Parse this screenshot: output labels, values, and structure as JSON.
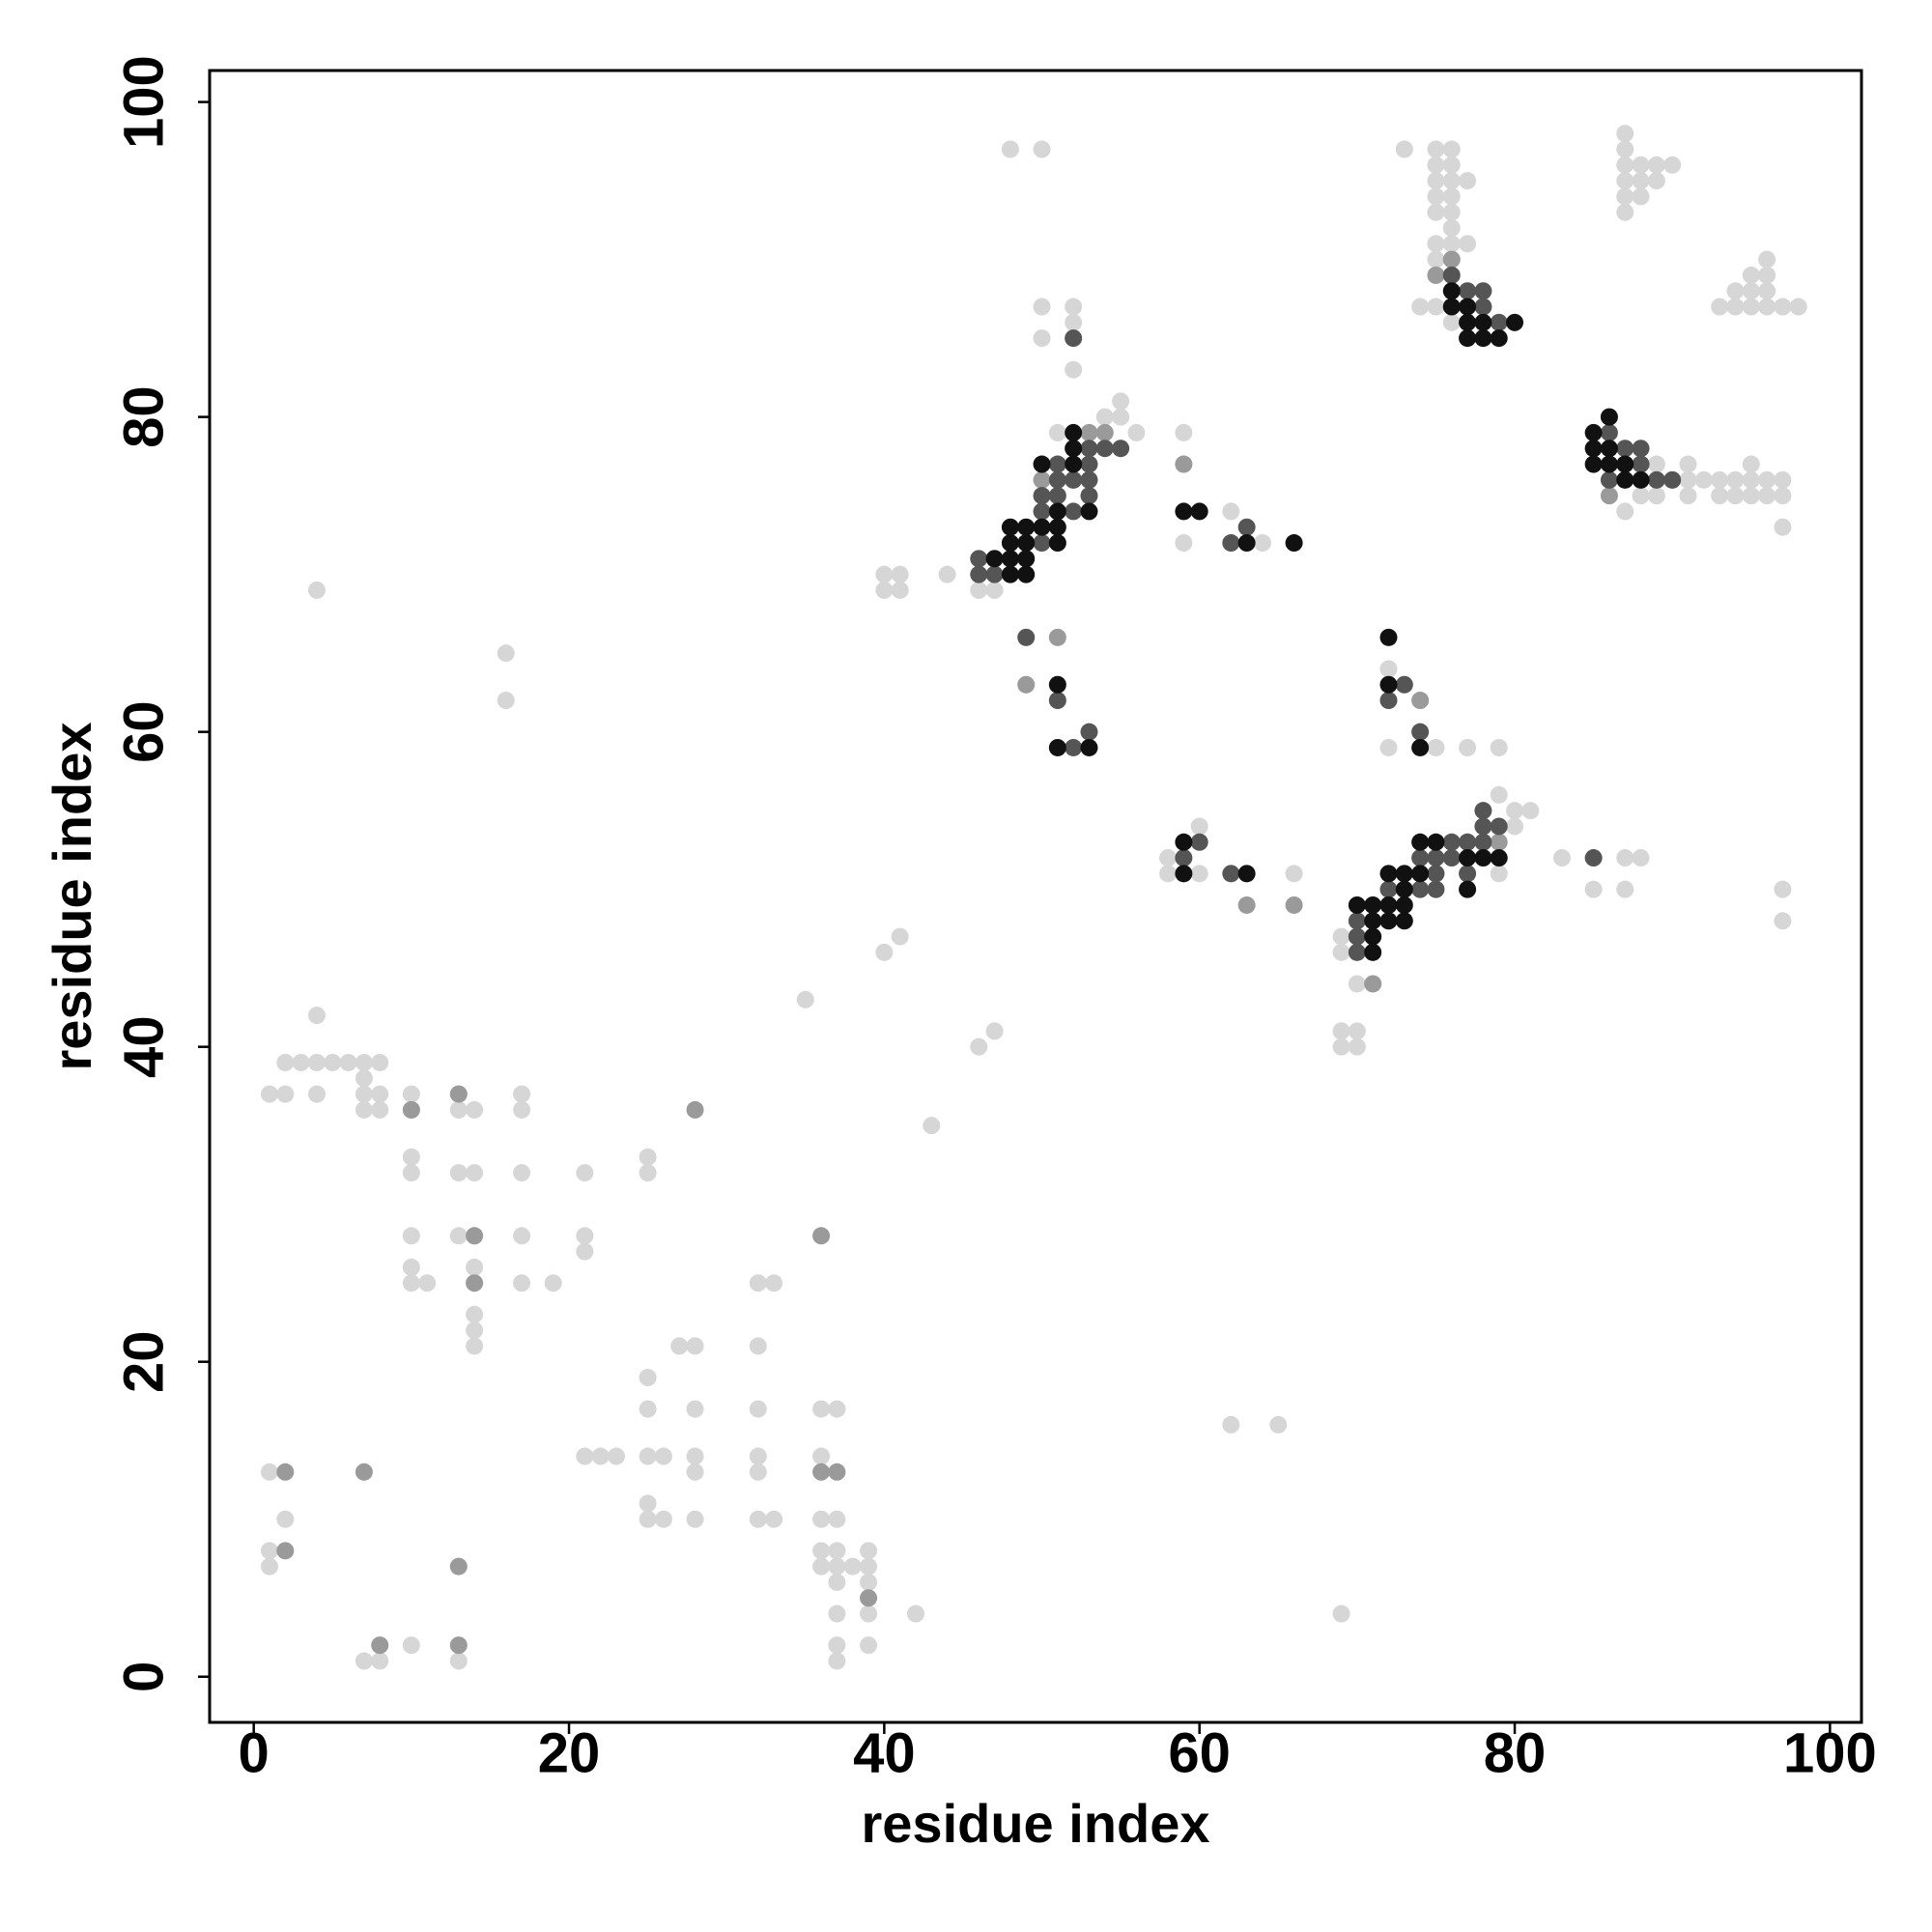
{
  "chart_data": {
    "type": "scatter",
    "x_label": "residue index",
    "y_label": "residue index",
    "xlim": [
      -2.8,
      102
    ],
    "ylim": [
      -2.9,
      102
    ],
    "xticks": [
      0,
      20,
      40,
      60,
      80,
      100
    ],
    "yticks": [
      0,
      20,
      40,
      60,
      80,
      100
    ],
    "series": [
      {
        "color": "#d6d6d6",
        "x": [
          1,
          2,
          4,
          7,
          8,
          4,
          5,
          6,
          7,
          3,
          2,
          8,
          7,
          7,
          8,
          4,
          4,
          10,
          10,
          13,
          13,
          14,
          10,
          10,
          13,
          14,
          17,
          17,
          17,
          21,
          10,
          13,
          14,
          17,
          21,
          21,
          10,
          10,
          11,
          14,
          14,
          17,
          19,
          14,
          14,
          14,
          16,
          16,
          25,
          25,
          27,
          28,
          32,
          32,
          33,
          25,
          25,
          28,
          32,
          36,
          37,
          21,
          22,
          23,
          25,
          26,
          28,
          28,
          32,
          32,
          36,
          25,
          25,
          26,
          28,
          32,
          33,
          36,
          37,
          36,
          37,
          39,
          36,
          37,
          38,
          39,
          37,
          39,
          37,
          39,
          42,
          37,
          39,
          37,
          1,
          2,
          1,
          1,
          7,
          8,
          10,
          13,
          35,
          40,
          41,
          43,
          46,
          47,
          40,
          41,
          40,
          41,
          44,
          46,
          47,
          48,
          50,
          50,
          52,
          52,
          50,
          52,
          51,
          54,
          55,
          55,
          56,
          58,
          58,
          60,
          60,
          59,
          59,
          59,
          62,
          64,
          66,
          62,
          65,
          69,
          69,
          70,
          69,
          70,
          69,
          70,
          69,
          72,
          72,
          74,
          75,
          77,
          79,
          79,
          79,
          80,
          80,
          81,
          83,
          85,
          87,
          88,
          87,
          97,
          97,
          73,
          75,
          76,
          75,
          76,
          75,
          76,
          77,
          75,
          76,
          75,
          76,
          76,
          75,
          76,
          77,
          75,
          76,
          75,
          74,
          75,
          76,
          87,
          87,
          87,
          88,
          89,
          90,
          87,
          88,
          89,
          87,
          88,
          87,
          96,
          95,
          96,
          94,
          95,
          96,
          93,
          94,
          95,
          96,
          97,
          98,
          87,
          87,
          88,
          89,
          89,
          90,
          91,
          91,
          91,
          92,
          93,
          93,
          94,
          94,
          95,
          95,
          95,
          96,
          96,
          97,
          97,
          97
        ],
        "y": [
          37,
          37,
          37,
          37,
          37,
          39,
          39,
          39,
          39,
          39,
          39,
          39,
          38,
          36,
          36,
          42,
          69,
          37,
          36,
          37,
          36,
          36,
          33,
          32,
          32,
          32,
          37,
          36,
          32,
          32,
          28,
          28,
          28,
          28,
          28,
          27,
          26,
          25,
          25,
          26,
          25,
          25,
          25,
          23,
          22,
          21,
          65,
          62,
          33,
          32,
          21,
          21,
          21,
          25,
          25,
          19,
          17,
          17,
          17,
          17,
          17,
          14,
          14,
          14,
          14,
          14,
          14,
          13,
          14,
          13,
          14,
          11,
          10,
          10,
          10,
          10,
          10,
          10,
          10,
          8,
          8,
          8,
          7,
          7,
          7,
          7,
          6,
          6,
          4,
          4,
          4,
          2,
          2,
          1,
          13,
          10,
          8,
          7,
          1,
          1,
          2,
          1,
          43,
          46,
          47,
          35,
          40,
          41,
          70,
          70,
          69,
          69,
          70,
          69,
          69,
          97,
          97,
          87,
          87,
          86,
          85,
          83,
          79,
          80,
          80,
          81,
          79,
          52,
          51,
          51,
          54,
          79,
          77,
          72,
          74,
          72,
          51,
          16,
          16,
          47,
          46,
          44,
          41,
          41,
          40,
          40,
          4,
          64,
          59,
          62,
          59,
          59,
          59,
          51,
          56,
          55,
          54,
          55,
          52,
          50,
          52,
          52,
          50,
          50,
          48,
          97,
          97,
          97,
          96,
          96,
          95,
          95,
          95,
          94,
          94,
          93,
          93,
          92,
          91,
          91,
          91,
          90,
          90,
          89,
          87,
          87,
          86,
          98,
          97,
          96,
          96,
          96,
          96,
          95,
          95,
          95,
          94,
          94,
          93,
          90,
          89,
          89,
          88,
          88,
          88,
          87,
          87,
          87,
          87,
          87,
          87,
          76,
          74,
          75,
          75,
          77,
          76,
          76,
          75,
          77,
          76,
          76,
          75,
          76,
          75,
          77,
          76,
          75,
          76,
          75,
          76,
          75,
          73
        ]
      },
      {
        "color": "#9a9a9a",
        "x": [
          2,
          2,
          7,
          8,
          13,
          13,
          28,
          36,
          39,
          37,
          36,
          13,
          14,
          14,
          10,
          49,
          51,
          59,
          63,
          66,
          75,
          76,
          86,
          52,
          50,
          51,
          53,
          54,
          74,
          70,
          71,
          79
        ],
        "y": [
          13,
          8,
          13,
          2,
          2,
          7,
          36,
          28,
          5,
          13,
          13,
          37,
          28,
          25,
          36,
          63,
          66,
          77,
          49,
          49,
          89,
          90,
          75,
          76,
          76,
          74,
          79,
          79,
          62,
          47,
          44,
          53
        ]
      },
      {
        "color": "#555555",
        "x": [
          46,
          47,
          46,
          47,
          50,
          50,
          50,
          51,
          51,
          53,
          53,
          52,
          53,
          52,
          51,
          53,
          54,
          55,
          52,
          76,
          77,
          78,
          78,
          79,
          49,
          51,
          52,
          53,
          73,
          74,
          72,
          62,
          63,
          59,
          60,
          62,
          70,
          70,
          70,
          72,
          74,
          75,
          74,
          75,
          75,
          76,
          76,
          77,
          78,
          78,
          79,
          78,
          77,
          86,
          86,
          87,
          88,
          88,
          89,
          90,
          85
        ],
        "y": [
          70,
          70,
          71,
          71,
          72,
          74,
          75,
          75,
          77,
          77,
          76,
          76,
          75,
          74,
          76,
          78,
          78,
          78,
          85,
          89,
          88,
          88,
          87,
          86,
          66,
          62,
          59,
          60,
          63,
          60,
          62,
          72,
          73,
          52,
          53,
          51,
          48,
          47,
          46,
          50,
          50,
          50,
          52,
          52,
          51,
          52,
          53,
          53,
          53,
          54,
          54,
          55,
          51,
          79,
          76,
          78,
          78,
          77,
          76,
          76,
          52
        ]
      },
      {
        "color": "#111111",
        "x": [
          48,
          49,
          47,
          48,
          49,
          48,
          49,
          51,
          48,
          49,
          50,
          51,
          51,
          53,
          50,
          52,
          52,
          52,
          59,
          60,
          63,
          66,
          76,
          76,
          77,
          77,
          78,
          78,
          79,
          77,
          80,
          86,
          85,
          85,
          86,
          85,
          86,
          87,
          88,
          87,
          72,
          72,
          74,
          51,
          53,
          51,
          70,
          71,
          72,
          71,
          72,
          73,
          72,
          73,
          74,
          73,
          74,
          75,
          77,
          78,
          79,
          77,
          71,
          71,
          73,
          59,
          59,
          63
        ],
        "y": [
          70,
          70,
          71,
          71,
          71,
          72,
          72,
          72,
          73,
          73,
          73,
          73,
          74,
          74,
          77,
          77,
          78,
          79,
          74,
          74,
          72,
          72,
          88,
          87,
          87,
          86,
          86,
          85,
          85,
          85,
          86,
          80,
          79,
          78,
          78,
          77,
          77,
          77,
          76,
          76,
          66,
          63,
          59,
          59,
          59,
          63,
          49,
          49,
          49,
          48,
          48,
          48,
          51,
          51,
          51,
          50,
          53,
          53,
          52,
          52,
          52,
          50,
          46,
          47,
          49,
          53,
          51,
          51
        ]
      }
    ]
  }
}
